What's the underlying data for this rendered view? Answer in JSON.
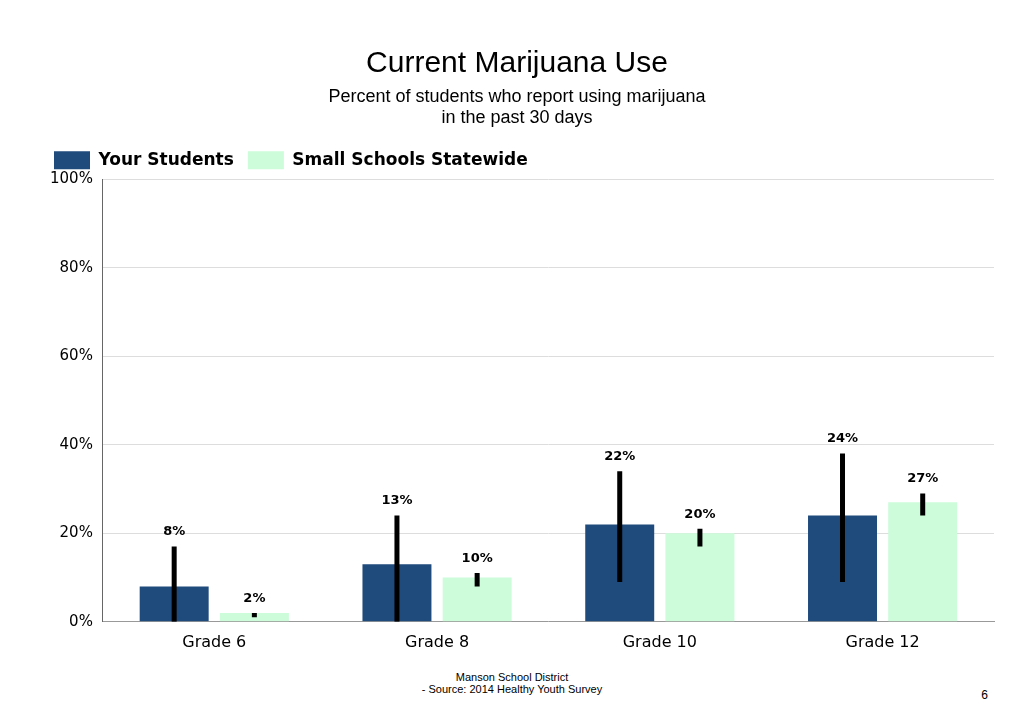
{
  "chart_data": {
    "type": "bar",
    "title": "Current Marijuana Use",
    "subtitle": [
      "Percent of students who report using marijuana",
      "in the past 30 days"
    ],
    "categories": [
      "Grade 6",
      "Grade 8",
      "Grade 10",
      "Grade 12"
    ],
    "series": [
      {
        "name": "Your Students",
        "color": "#1f4a7c",
        "values": [
          8,
          13,
          22,
          24
        ],
        "value_labels": [
          "8%",
          "13%",
          "22%",
          "24%"
        ],
        "error_low": [
          0,
          0,
          9,
          9
        ],
        "error_high": [
          17,
          24,
          34,
          38
        ]
      },
      {
        "name": "Small Schools Statewide",
        "color": "#ccfcd9",
        "values": [
          2,
          10,
          20,
          27
        ],
        "value_labels": [
          "2%",
          "10%",
          "20%",
          "27%"
        ],
        "error_low": [
          1,
          8,
          17,
          24
        ],
        "error_high": [
          2,
          11,
          21,
          29
        ]
      }
    ],
    "ylim": [
      0,
      100
    ],
    "yticks": [
      {
        "value": 0,
        "label": "0%"
      },
      {
        "value": 20,
        "label": "20%"
      },
      {
        "value": 40,
        "label": "40%"
      },
      {
        "value": 60,
        "label": "60%"
      },
      {
        "value": 80,
        "label": "80%"
      },
      {
        "value": 100,
        "label": "100%"
      }
    ],
    "grid": true,
    "legend": "top",
    "data_labels": true,
    "annotations": [
      "Manson School District",
      "- Source: 2014 Healthy Youth Survey",
      "6"
    ]
  }
}
